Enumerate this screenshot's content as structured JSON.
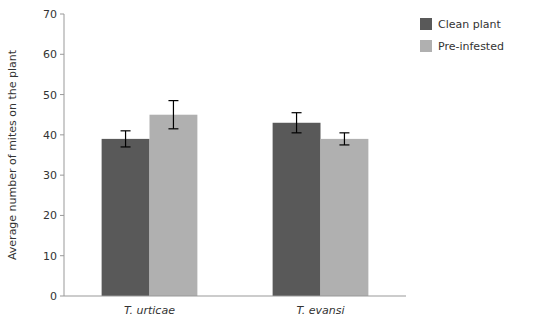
{
  "chart_data": {
    "type": "bar",
    "categories": [
      "T. urticae",
      "T. evansi"
    ],
    "series": [
      {
        "name": "Clean plant",
        "color": "#595959",
        "values": [
          39.0,
          43.0
        ],
        "errors": [
          2.0,
          2.5
        ]
      },
      {
        "name": "Pre-infested",
        "color": "#b0b0b0",
        "values": [
          45.0,
          39.0
        ],
        "errors": [
          3.5,
          1.5
        ]
      }
    ],
    "ylabel": "Average number of mites on the plant",
    "ylim": [
      0,
      70
    ],
    "yticks": [
      0,
      10,
      20,
      30,
      40,
      50,
      60,
      70
    ],
    "grid": false,
    "legend": "upper right"
  }
}
